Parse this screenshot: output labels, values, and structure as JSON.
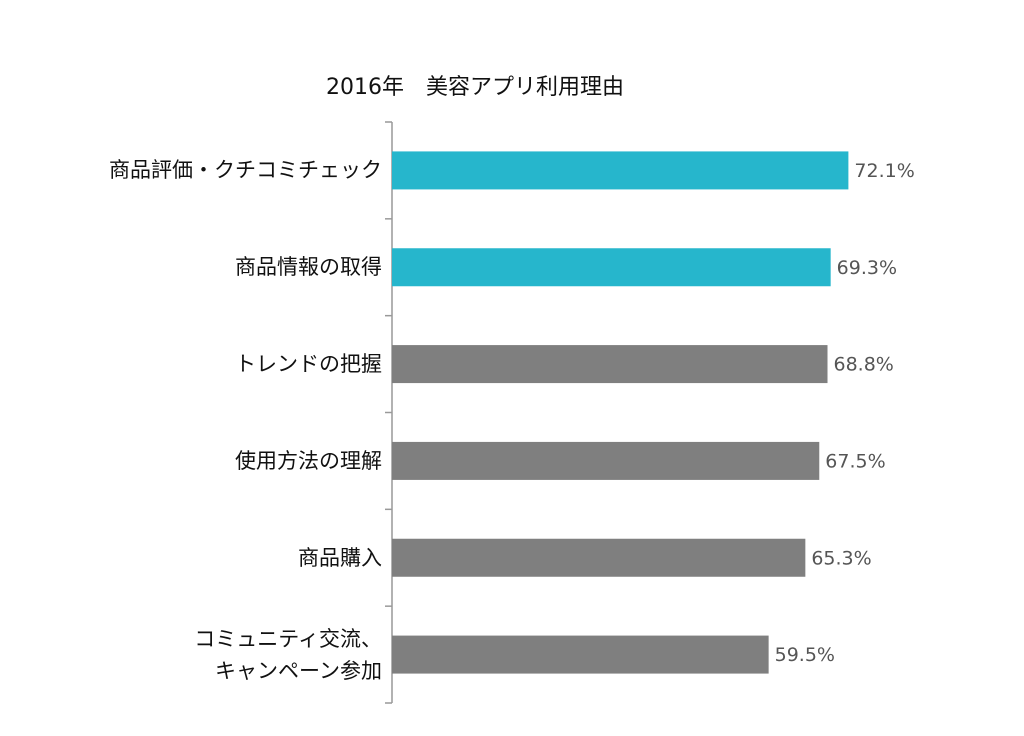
{
  "chart_data": {
    "type": "hbar",
    "title": "2016年　美容アプリ利用理由",
    "categories": [
      "商品評価・クチコミチェック",
      "商品情報の取得",
      "トレンドの把握",
      "使用方法の理解",
      "商品購入",
      "コミュニティ交流、\nキャンペーン参加"
    ],
    "values": [
      72.1,
      69.3,
      68.8,
      67.5,
      65.3,
      59.5
    ],
    "value_labels": [
      "72.1%",
      "69.3%",
      "68.8%",
      "67.5%",
      "65.3%",
      "59.5%"
    ],
    "colors": [
      "#26b6cc",
      "#26b6cc",
      "#7f7f7f",
      "#7f7f7f",
      "#7f7f7f",
      "#7f7f7f"
    ]
  }
}
